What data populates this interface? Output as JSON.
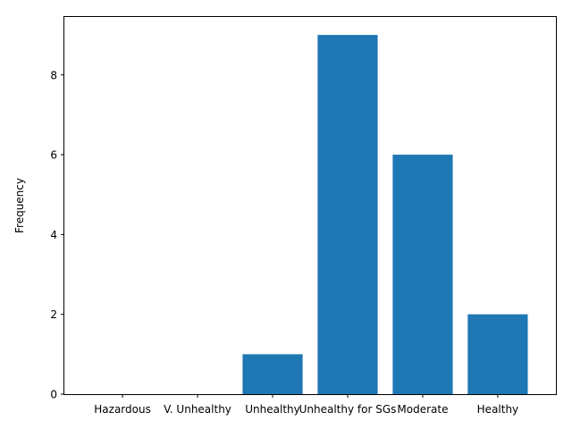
{
  "chart_data": {
    "type": "bar",
    "title": "",
    "xlabel": "",
    "ylabel": "Frequency",
    "categories": [
      "Hazardous",
      "V. Unhealthy",
      "Unhealthy",
      "Unhealthy for SGs",
      "Moderate",
      "Healthy"
    ],
    "values": [
      0,
      0,
      1,
      9,
      6,
      2
    ],
    "ylim": [
      0,
      9.45
    ],
    "yticks": [
      0,
      2,
      4,
      6,
      8
    ],
    "grid": false,
    "legend": "none",
    "bar_color": "#1f77b4"
  }
}
